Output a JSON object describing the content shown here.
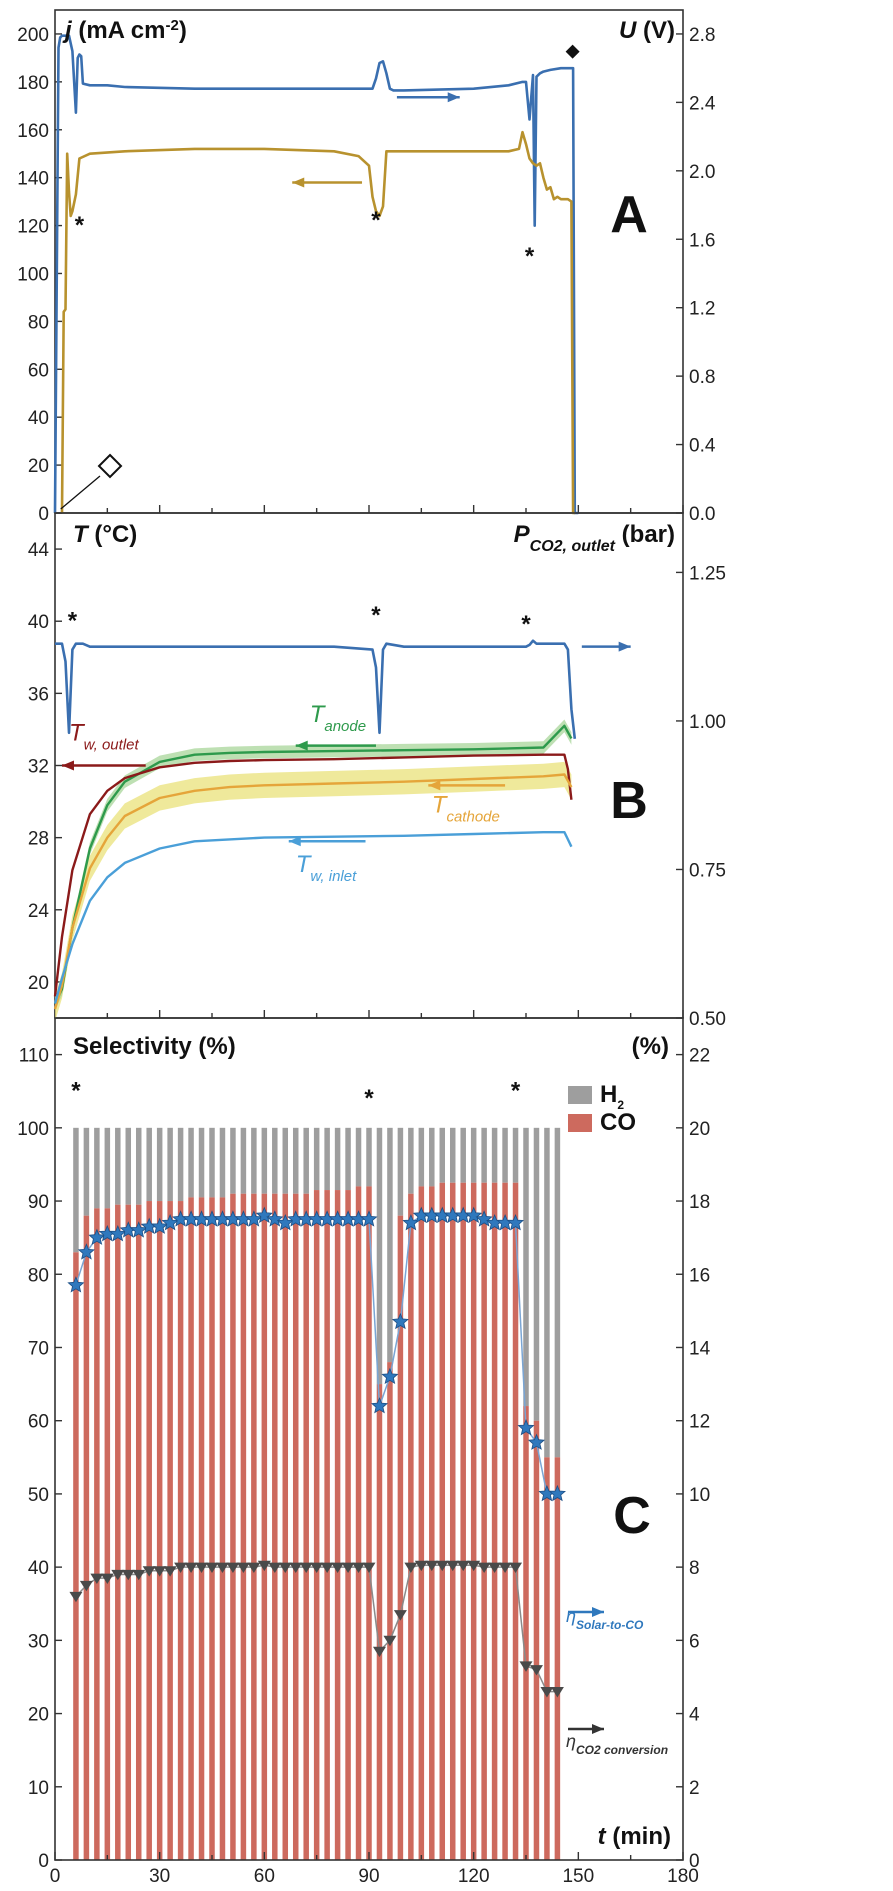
{
  "chart_data": [
    {
      "panel": "A",
      "type": "line",
      "xlim": [
        0,
        180
      ],
      "left_axis": {
        "label_symbol": "j",
        "label_unit": "(mA cm-2)",
        "ylim": [
          0,
          210
        ],
        "ticks": [
          0,
          20,
          40,
          60,
          80,
          100,
          120,
          140,
          160,
          180,
          200
        ]
      },
      "right_axis": {
        "label_symbol": "U",
        "label_unit": "(V)",
        "ylim": [
          0,
          2.94
        ],
        "ticks": [
          "0.0",
          "0.4",
          "0.8",
          "1.2",
          "1.6",
          "2.0",
          "2.4",
          "2.8"
        ]
      },
      "series": [
        {
          "axis": "right",
          "color": "#3a6fb0",
          "x": [
            0,
            1,
            1.5,
            2,
            3,
            4,
            5,
            6,
            6.5,
            7,
            7.5,
            8,
            10,
            15,
            20,
            40,
            60,
            80,
            91,
            92,
            93,
            94,
            95,
            96,
            97,
            100,
            120,
            130,
            134,
            135,
            136,
            137,
            137.5,
            138,
            139,
            140,
            142,
            145,
            147,
            148,
            148.5,
            149,
            150
          ],
          "y": [
            0,
            2.72,
            2.78,
            2.79,
            2.79,
            2.79,
            2.7,
            2.34,
            2.66,
            2.68,
            2.67,
            2.51,
            2.5,
            2.5,
            2.49,
            2.48,
            2.48,
            2.48,
            2.48,
            2.54,
            2.63,
            2.64,
            2.57,
            2.48,
            2.47,
            2.47,
            2.48,
            2.5,
            2.52,
            2.52,
            2.3,
            2.56,
            1.68,
            2.55,
            2.57,
            2.58,
            2.59,
            2.6,
            2.6,
            2.6,
            2.6,
            0,
            0
          ]
        },
        {
          "axis": "left",
          "color": "#b8922e",
          "x": [
            2,
            2.5,
            3,
            3.5,
            4,
            4.5,
            5,
            6,
            7,
            10,
            20,
            40,
            60,
            80,
            87,
            90,
            91,
            92,
            93,
            94,
            95,
            96,
            98,
            110,
            120,
            130,
            133,
            134,
            135,
            136,
            137,
            138,
            139,
            140,
            141,
            142,
            143,
            144,
            145,
            147,
            148,
            148.5,
            149
          ],
          "y": [
            0,
            84,
            85,
            150,
            134,
            124,
            126,
            133,
            148,
            150,
            151,
            152,
            152,
            151,
            149,
            145,
            132,
            126,
            124,
            128,
            151,
            151,
            151,
            151,
            151,
            151,
            152,
            159,
            154,
            148,
            146,
            145,
            146,
            140,
            135,
            136,
            131,
            132,
            131,
            131,
            130,
            0,
            0
          ]
        }
      ],
      "markers": [
        {
          "kind": "open-diamond",
          "x": 0.5,
          "axis": "left",
          "y": 0
        },
        {
          "kind": "filled-diamond",
          "x": 147.5,
          "axis": "right",
          "y": 2.79
        }
      ],
      "asterisks": [
        {
          "x": 7,
          "y": 117
        },
        {
          "x": 92,
          "y": 119
        },
        {
          "x": 136,
          "y": 104
        }
      ],
      "arrows": [
        {
          "series": "U",
          "direction": "right",
          "x_from": 98,
          "x_to": 116,
          "axis": "right",
          "y": 2.43
        },
        {
          "series": "j",
          "direction": "left",
          "x_from": 88,
          "x_to": 68,
          "axis": "left",
          "y": 138
        }
      ],
      "letter": "A"
    },
    {
      "panel": "B",
      "type": "line",
      "xlim": [
        0,
        180
      ],
      "left_axis": {
        "label_symbol": "T",
        "label_unit": "(°C)",
        "ylim": [
          18,
          46
        ],
        "ticks": [
          20,
          24,
          28,
          32,
          36,
          40,
          44
        ]
      },
      "right_axis": {
        "label_symbol": "P",
        "label_sub": "CO2, outlet",
        "label_unit": "(bar)",
        "ylim": [
          0.5,
          1.35
        ],
        "ticks": [
          "0.50",
          "0.75",
          "1.00",
          "1.25"
        ]
      },
      "series": [
        {
          "name": "P",
          "axis": "right",
          "color": "#3a6fb0",
          "x": [
            0,
            2,
            3,
            4,
            5,
            6,
            7,
            8,
            10,
            40,
            80,
            91,
            92,
            93,
            94,
            95,
            100,
            130,
            135,
            136,
            137,
            138,
            140,
            146,
            147,
            148,
            149
          ],
          "y": [
            1.13,
            1.13,
            1.1,
            0.98,
            1.12,
            1.13,
            1.13,
            1.13,
            1.125,
            1.125,
            1.125,
            1.12,
            1.09,
            0.98,
            1.12,
            1.13,
            1.125,
            1.125,
            1.125,
            1.128,
            1.135,
            1.13,
            1.13,
            1.13,
            1.12,
            1.02,
            0.97
          ]
        },
        {
          "name": "T anode",
          "axis": "left",
          "color": "#2e9a4c",
          "x": [
            0,
            2,
            5,
            10,
            15,
            20,
            30,
            40,
            50,
            60,
            80,
            100,
            120,
            140,
            146,
            148
          ],
          "y": [
            18.8,
            19.6,
            23,
            27.4,
            29.8,
            31.1,
            32.2,
            32.6,
            32.7,
            32.75,
            32.8,
            32.85,
            32.9,
            33,
            34.2,
            33.5
          ]
        },
        {
          "name": "T w, outlet",
          "axis": "left",
          "color": "#8b1a1a",
          "x": [
            0,
            2,
            5,
            10,
            15,
            20,
            30,
            40,
            50,
            60,
            80,
            100,
            120,
            140,
            146,
            147,
            148
          ],
          "y": [
            19.2,
            22.5,
            26.2,
            29.3,
            30.6,
            31.3,
            31.9,
            32.15,
            32.25,
            32.3,
            32.35,
            32.45,
            32.55,
            32.6,
            32.6,
            31.8,
            30.1
          ]
        },
        {
          "name": "T cathode",
          "axis": "left",
          "color": "#e5a53a",
          "band": "#eae17a",
          "x": [
            0,
            2,
            5,
            10,
            15,
            20,
            30,
            40,
            50,
            60,
            80,
            100,
            120,
            140,
            146,
            148
          ],
          "y": [
            18.5,
            19.8,
            23,
            26.3,
            28,
            29.2,
            30.2,
            30.6,
            30.8,
            30.9,
            31,
            31.1,
            31.25,
            31.4,
            31.5,
            30.8
          ]
        },
        {
          "name": "T w, inlet",
          "axis": "left",
          "color": "#4a9fd8",
          "x": [
            0,
            2,
            5,
            10,
            15,
            20,
            30,
            40,
            50,
            60,
            80,
            100,
            120,
            140,
            146,
            147,
            148
          ],
          "y": [
            18.8,
            20.2,
            22.1,
            24.5,
            25.8,
            26.6,
            27.4,
            27.8,
            27.9,
            28,
            28.05,
            28.1,
            28.2,
            28.3,
            28.3,
            27.9,
            27.5
          ]
        }
      ],
      "labels": [
        {
          "text": "T",
          "sub": "anode",
          "x": 73,
          "y": 34.4,
          "color": "#2e9a4c",
          "arrow": "left",
          "arrow_from": 92,
          "arrow_to": 69,
          "arrow_y": 33.1
        },
        {
          "text": "T",
          "sub": "w, outlet",
          "x": 4,
          "y": 33.4,
          "color": "#8b1a1a",
          "arrow": "left",
          "arrow_from": 26,
          "arrow_to": 2,
          "arrow_y": 32.0
        },
        {
          "text": "T",
          "sub": "cathode",
          "x": 108,
          "y": 29.4,
          "color": "#e5a53a",
          "arrow": "left",
          "arrow_from": 129,
          "arrow_to": 107,
          "arrow_y": 30.9
        },
        {
          "text": "T",
          "sub": "w, inlet",
          "x": 69,
          "y": 26.1,
          "color": "#4a9fd8",
          "arrow": "left",
          "arrow_from": 89,
          "arrow_to": 67,
          "arrow_y": 27.8
        }
      ],
      "p_arrow": {
        "direction": "right",
        "x_from": 151,
        "x_to": 165,
        "y": 1.125
      },
      "asterisks": [
        {
          "x": 5,
          "y": 39.6
        },
        {
          "x": 92,
          "y": 39.9
        },
        {
          "x": 135,
          "y": 39.4
        }
      ],
      "letter": "B"
    },
    {
      "panel": "C",
      "type": "bar",
      "xlim": [
        0,
        180
      ],
      "x_label_symbol": "t",
      "x_label_unit": "(min)",
      "x_ticks": [
        0,
        30,
        60,
        90,
        120,
        150,
        180
      ],
      "left_axis": {
        "label": "Selectivity (%)",
        "ylim": [
          0,
          115
        ],
        "ticks": [
          0,
          10,
          20,
          30,
          40,
          50,
          60,
          70,
          80,
          90,
          100,
          110
        ]
      },
      "right_axis": {
        "label": "(%)",
        "ylim": [
          0,
          23
        ],
        "ticks": [
          0,
          2,
          4,
          6,
          8,
          10,
          12,
          14,
          16,
          18,
          20,
          22
        ]
      },
      "bar_x": [
        6,
        9,
        12,
        15,
        18,
        21,
        24,
        27,
        30,
        33,
        36,
        39,
        42,
        45,
        48,
        51,
        54,
        57,
        60,
        63,
        66,
        69,
        72,
        75,
        78,
        81,
        84,
        87,
        90,
        93,
        96,
        99,
        102,
        105,
        108,
        111,
        114,
        117,
        120,
        123,
        126,
        129,
        132,
        135,
        138,
        141,
        144
      ],
      "co": [
        83,
        88,
        89,
        89,
        89.5,
        89.5,
        89.5,
        90,
        90,
        90,
        90,
        90.5,
        90.5,
        90.5,
        90.5,
        91,
        91,
        91,
        91,
        91,
        91,
        91,
        91,
        91.5,
        91.5,
        91.5,
        91.5,
        92,
        92,
        65,
        68,
        88,
        91,
        92,
        92,
        92.5,
        92.5,
        92.5,
        92.5,
        92.5,
        92.5,
        92.5,
        92.5,
        62,
        60,
        55,
        55
      ],
      "h2_total": 100,
      "legend": [
        {
          "name": "H2",
          "color": "#9e9e9e"
        },
        {
          "name": "CO",
          "color": "#cd6a5e"
        }
      ],
      "series": [
        {
          "name": "η Solar-to-CO",
          "axis": "right",
          "marker": "star",
          "color": "#2f78bd",
          "x": [
            6,
            9,
            12,
            15,
            18,
            21,
            24,
            27,
            30,
            33,
            36,
            39,
            42,
            45,
            48,
            51,
            54,
            57,
            60,
            63,
            66,
            69,
            72,
            75,
            78,
            81,
            84,
            87,
            90,
            93,
            96,
            99,
            102,
            105,
            108,
            111,
            114,
            117,
            120,
            123,
            126,
            129,
            132,
            135,
            138,
            141,
            144
          ],
          "values": [
            15.7,
            16.6,
            17.0,
            17.1,
            17.1,
            17.2,
            17.2,
            17.3,
            17.3,
            17.4,
            17.5,
            17.5,
            17.5,
            17.5,
            17.5,
            17.5,
            17.5,
            17.5,
            17.6,
            17.5,
            17.4,
            17.5,
            17.5,
            17.5,
            17.5,
            17.5,
            17.5,
            17.5,
            17.5,
            12.4,
            13.2,
            14.7,
            17.4,
            17.6,
            17.6,
            17.6,
            17.6,
            17.6,
            17.6,
            17.5,
            17.4,
            17.4,
            17.4,
            11.8,
            11.4,
            10.0,
            10.0
          ]
        },
        {
          "name": "η CO2 conversion",
          "axis": "right",
          "marker": "triangle-down",
          "color": "#4a4a4a",
          "x": [
            6,
            9,
            12,
            15,
            18,
            21,
            24,
            27,
            30,
            33,
            36,
            39,
            42,
            45,
            48,
            51,
            54,
            57,
            60,
            63,
            66,
            69,
            72,
            75,
            78,
            81,
            84,
            87,
            90,
            93,
            96,
            99,
            102,
            105,
            108,
            111,
            114,
            117,
            120,
            123,
            126,
            129,
            132,
            135,
            138,
            141,
            144
          ],
          "values": [
            7.2,
            7.5,
            7.7,
            7.7,
            7.8,
            7.8,
            7.8,
            7.9,
            7.9,
            7.9,
            8.0,
            8.0,
            8.0,
            8.0,
            8.0,
            8.0,
            8.0,
            8.0,
            8.05,
            8.0,
            8.0,
            8.0,
            8.0,
            8.0,
            8.0,
            8.0,
            8.0,
            8.0,
            8.0,
            5.7,
            6.0,
            6.7,
            8.0,
            8.05,
            8.05,
            8.05,
            8.05,
            8.05,
            8.05,
            8.0,
            8.0,
            8.0,
            8.0,
            5.3,
            5.2,
            4.6,
            4.6
          ]
        }
      ],
      "eta_labels": [
        {
          "text": "η",
          "sub": "Solar-to-CO",
          "color": "#2f78bd"
        },
        {
          "text": "η",
          "sub": "CO2 conversion",
          "color": "#333333"
        }
      ],
      "asterisks": [
        {
          "x": 6,
          "y": 104
        },
        {
          "x": 90,
          "y": 103
        },
        {
          "x": 132,
          "y": 104
        }
      ],
      "letter": "C"
    }
  ],
  "theme": {
    "frame": "#333333",
    "asterisk": "#111111",
    "arrow_u": "#3a6fb0",
    "arrow_j": "#b8922e"
  }
}
